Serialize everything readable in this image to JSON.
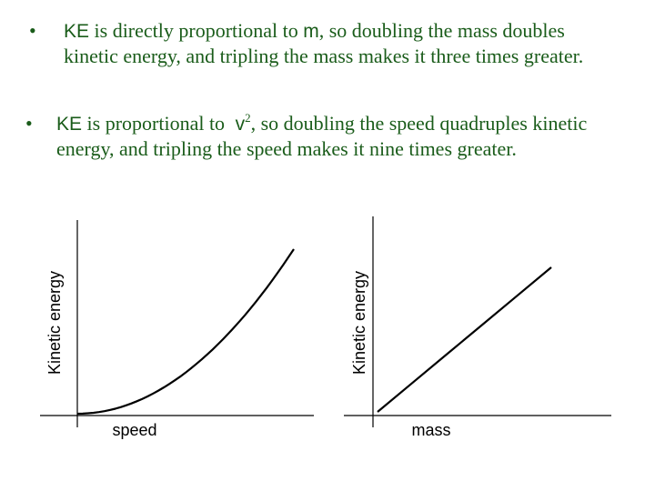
{
  "bullets": [
    {
      "marker": "•",
      "symbol": "KE",
      "text_before_var": " is directly proportional to ",
      "variable": "m",
      "text_after_var": ", so doubling the mass doubles kinetic energy, and tripling the mass makes it three times greater."
    },
    {
      "marker": "•",
      "symbol": "KE",
      "text_before_var": " is proportional to ",
      "variable": "v",
      "exponent": "2",
      "text_after_var": ", so doubling the speed quadruples kinetic energy, and tripling the speed makes it nine times greater."
    }
  ],
  "chart_data": [
    {
      "type": "line",
      "xlabel": "speed",
      "ylabel": "Kinetic energy",
      "shape": "quadratic",
      "x": [
        0,
        0.2,
        0.4,
        0.6,
        0.8,
        1.0
      ],
      "y": [
        0,
        0.04,
        0.16,
        0.36,
        0.64,
        1.0
      ]
    },
    {
      "type": "line",
      "xlabel": "mass",
      "ylabel": "Kinetic energy",
      "shape": "linear",
      "x": [
        0,
        0.2,
        0.4,
        0.6,
        0.8,
        1.0
      ],
      "y": [
        0,
        0.2,
        0.4,
        0.6,
        0.8,
        1.0
      ]
    }
  ]
}
